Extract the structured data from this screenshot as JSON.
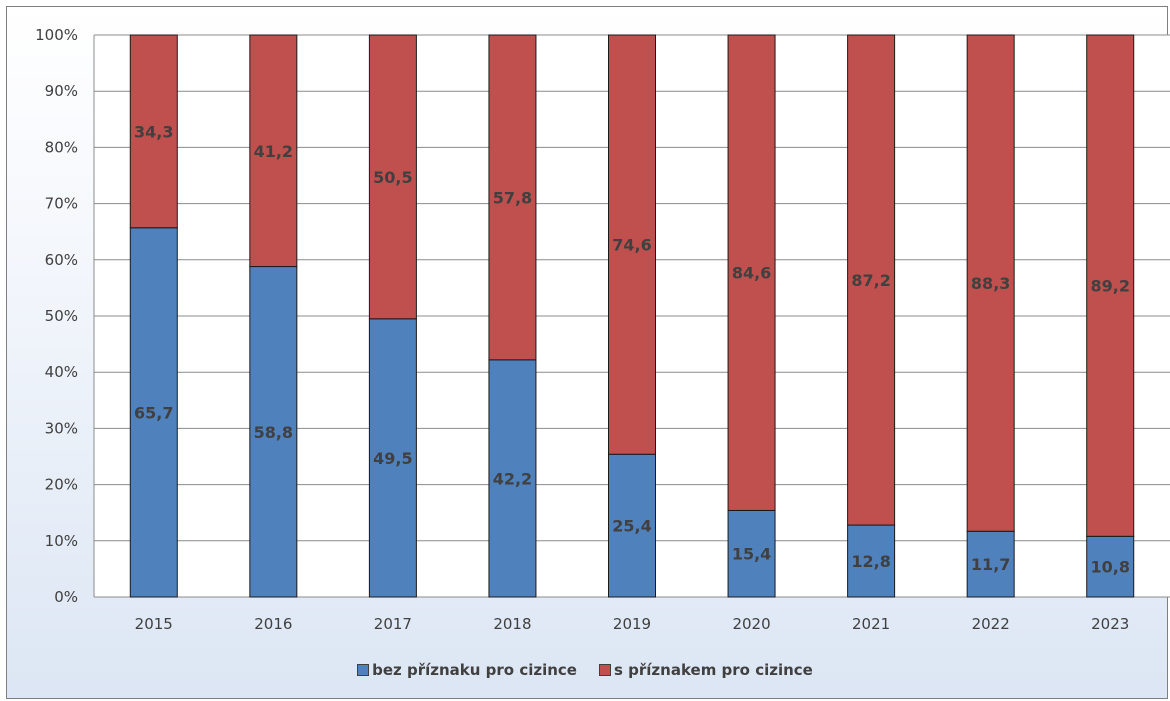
{
  "chart_data": {
    "type": "bar",
    "stacked": true,
    "percent": true,
    "categories": [
      "2015",
      "2016",
      "2017",
      "2018",
      "2019",
      "2020",
      "2021",
      "2022",
      "2023"
    ],
    "series": [
      {
        "name": "bez příznaku pro cizince",
        "values": [
          65.7,
          58.8,
          49.5,
          42.2,
          25.4,
          15.4,
          12.8,
          11.7,
          10.8
        ],
        "labels": [
          "65,7",
          "58,8",
          "49,5",
          "42,2",
          "25,4",
          "15,4",
          "12,8",
          "11,7",
          "10,8"
        ],
        "color": "#4f81bd"
      },
      {
        "name": "s příznakem pro cizince",
        "values": [
          34.3,
          41.2,
          50.5,
          57.8,
          74.6,
          84.6,
          87.2,
          88.3,
          89.2
        ],
        "labels": [
          "34,3",
          "41,2",
          "50,5",
          "57,8",
          "74,6",
          "84,6",
          "87,2",
          "88,3",
          "89,2"
        ],
        "color": "#c0504d"
      }
    ],
    "ylim": [
      0,
      100
    ],
    "yticks": [
      "0%",
      "10%",
      "20%",
      "30%",
      "40%",
      "50%",
      "60%",
      "70%",
      "80%",
      "90%",
      "100%"
    ],
    "grid": true,
    "legend_position": "bottom"
  }
}
